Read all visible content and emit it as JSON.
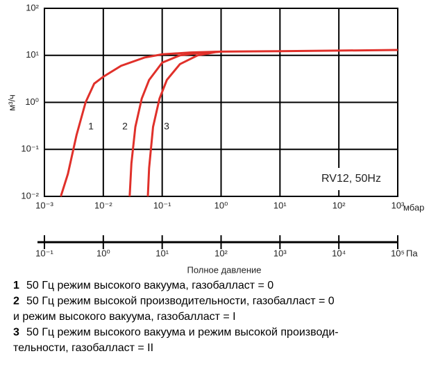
{
  "chart_data": {
    "type": "line",
    "log_scale": true,
    "grid": true,
    "y_label": "м³/ч",
    "x_label": "Полное давление",
    "x_unit": "мбар",
    "x2_unit": "Па",
    "annotation": "RV12, 50Hz",
    "xlim": [
      0.001,
      1000
    ],
    "xticks": [
      {
        "value": 0.001,
        "label": "10⁻³"
      },
      {
        "value": 0.01,
        "label": "10⁻²"
      },
      {
        "value": 0.1,
        "label": "10⁻¹"
      },
      {
        "value": 1,
        "label": "10⁰"
      },
      {
        "value": 10,
        "label": "10¹"
      },
      {
        "value": 100,
        "label": "10²"
      },
      {
        "value": 1000,
        "label": "10³"
      }
    ],
    "ylim": [
      0.01,
      100
    ],
    "yticks": [
      {
        "value": 0.01,
        "label": "10⁻²"
      },
      {
        "value": 0.1,
        "label": "10⁻¹"
      },
      {
        "value": 1,
        "label": "10⁰"
      },
      {
        "value": 10,
        "label": "10¹"
      },
      {
        "value": 100,
        "label": "10²"
      }
    ],
    "x2lim": [
      0.1,
      100000
    ],
    "x2ticks": [
      {
        "value": 0.1,
        "label": "10⁻¹"
      },
      {
        "value": 1,
        "label": "10⁰"
      },
      {
        "value": 10,
        "label": "10¹"
      },
      {
        "value": 100,
        "label": "10²"
      },
      {
        "value": 1000,
        "label": "10³"
      },
      {
        "value": 10000,
        "label": "10⁴"
      },
      {
        "value": 100000,
        "label": "10⁵"
      }
    ],
    "series": [
      {
        "name": "1",
        "color": "#e0302a",
        "x": [
          0.0019,
          0.0025,
          0.0035,
          0.005,
          0.007,
          0.01,
          0.02,
          0.05,
          0.1,
          0.3,
          1,
          10,
          100,
          1000
        ],
        "values": [
          0.01,
          0.03,
          0.2,
          1,
          2.5,
          3.5,
          6,
          9,
          10.5,
          11.5,
          12,
          12.3,
          12.6,
          13
        ]
      },
      {
        "name": "2",
        "color": "#e0302a",
        "x": [
          0.028,
          0.03,
          0.035,
          0.045,
          0.06,
          0.1,
          0.2,
          0.5,
          1
        ],
        "values": [
          0.01,
          0.05,
          0.3,
          1.2,
          3,
          7,
          10,
          11.5,
          12
        ]
      },
      {
        "name": "3",
        "color": "#e0302a",
        "x": [
          0.057,
          0.06,
          0.07,
          0.09,
          0.12,
          0.2,
          0.4,
          0.8,
          1
        ],
        "values": [
          0.01,
          0.04,
          0.3,
          1.2,
          3,
          6.5,
          10,
          11.7,
          12
        ]
      }
    ],
    "notes": [
      {
        "number": "1",
        "lines": [
          "50 Гц режим высокого вакуума, газобалласт = 0"
        ]
      },
      {
        "number": "2",
        "lines": [
          "50 Гц режим высокой производительности, газобалласт = 0",
          "и режим высокого вакуума, газобалласт = I"
        ]
      },
      {
        "number": "3",
        "lines": [
          "50 Гц режим высокого вакуума и режим высокой производи-",
          "тельности, газобалласт = II"
        ]
      }
    ]
  }
}
